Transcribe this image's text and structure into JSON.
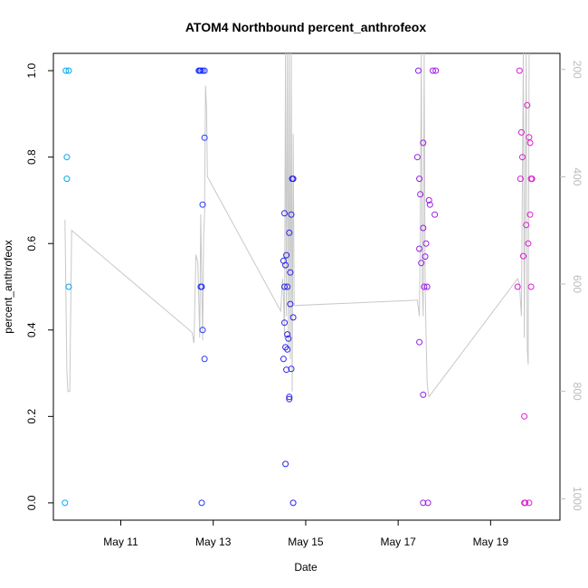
{
  "chart_data": {
    "type": "scatter",
    "title": "ATOM4 Northbound percent_anthrofeox",
    "xlabel": "Date",
    "ylabel": "percent_anthrofeox",
    "xlim": [
      "2023-05-09T13:00",
      "2023-05-20T12:00"
    ],
    "ylim": [
      -0.04,
      1.04
    ],
    "y2lim": [
      1040,
      170
    ],
    "x_ticks": [
      {
        "value": "2023-05-11T00:00",
        "label": "May 11"
      },
      {
        "value": "2023-05-13T00:00",
        "label": "May 13"
      },
      {
        "value": "2023-05-15T00:00",
        "label": "May 15"
      },
      {
        "value": "2023-05-17T00:00",
        "label": "May 17"
      },
      {
        "value": "2023-05-19T00:00",
        "label": "May 19"
      }
    ],
    "y_ticks": [
      "0.0",
      "0.2",
      "0.4",
      "0.6",
      "0.8",
      "1.0"
    ],
    "y2_ticks": [
      "200",
      "400",
      "600",
      "800",
      "1000"
    ],
    "grid": false,
    "legend": "none",
    "point_color_gradient": [
      "#00b4f0",
      "#1e3cff",
      "#2d1ee6",
      "#a01ee6",
      "#f01ec8"
    ],
    "line_color": "#c8c8c8",
    "series": [
      {
        "marker": "open-circle",
        "points": [
          [
            "2023-05-09T19:00",
            0.0
          ],
          [
            "2023-05-09T19:30",
            1.0
          ],
          [
            "2023-05-09T20:00",
            0.8
          ],
          [
            "2023-05-09T20:00",
            0.75
          ],
          [
            "2023-05-09T21:00",
            1.0
          ],
          [
            "2023-05-09T21:00",
            0.5
          ],
          [
            "2023-05-12T16:30",
            1.0
          ],
          [
            "2023-05-12T17:00",
            1.0
          ],
          [
            "2023-05-12T17:30",
            0.5
          ],
          [
            "2023-05-12T17:30",
            1.0
          ],
          [
            "2023-05-12T18:00",
            0.0
          ],
          [
            "2023-05-12T18:00",
            0.5
          ],
          [
            "2023-05-12T18:30",
            1.0
          ],
          [
            "2023-05-12T18:30",
            0.69
          ],
          [
            "2023-05-12T18:30",
            0.4
          ],
          [
            "2023-05-12T19:30",
            1.0
          ],
          [
            "2023-05-12T19:30",
            0.845
          ],
          [
            "2023-05-12T19:30",
            0.333
          ],
          [
            "2023-05-14T12:30",
            0.56
          ],
          [
            "2023-05-14T12:30",
            0.333
          ],
          [
            "2023-05-14T13:00",
            0.67
          ],
          [
            "2023-05-14T13:00",
            0.417
          ],
          [
            "2023-05-14T13:00",
            0.5
          ],
          [
            "2023-05-14T13:30",
            0.09
          ],
          [
            "2023-05-14T13:30",
            0.55
          ],
          [
            "2023-05-14T13:30",
            0.36
          ],
          [
            "2023-05-14T14:00",
            0.573
          ],
          [
            "2023-05-14T14:00",
            0.308
          ],
          [
            "2023-05-14T14:30",
            0.5
          ],
          [
            "2023-05-14T14:30",
            0.39
          ],
          [
            "2023-05-14T14:30",
            0.355
          ],
          [
            "2023-05-14T15:00",
            0.38
          ],
          [
            "2023-05-14T15:30",
            0.625
          ],
          [
            "2023-05-14T15:30",
            0.245
          ],
          [
            "2023-05-14T15:30",
            0.24
          ],
          [
            "2023-05-14T16:00",
            0.533
          ],
          [
            "2023-05-14T16:00",
            0.46
          ],
          [
            "2023-05-14T16:30",
            0.667
          ],
          [
            "2023-05-14T16:30",
            0.31
          ],
          [
            "2023-05-14T17:00",
            0.75
          ],
          [
            "2023-05-14T17:30",
            0.75
          ],
          [
            "2023-05-14T17:30",
            0.0
          ],
          [
            "2023-05-14T17:30",
            0.429
          ],
          [
            "2023-05-17T10:00",
            0.8
          ],
          [
            "2023-05-17T10:30",
            1.0
          ],
          [
            "2023-05-17T11:00",
            0.75
          ],
          [
            "2023-05-17T11:00",
            0.588
          ],
          [
            "2023-05-17T11:00",
            0.372
          ],
          [
            "2023-05-17T11:30",
            0.714
          ],
          [
            "2023-05-17T12:00",
            0.555
          ],
          [
            "2023-05-17T13:00",
            0.833
          ],
          [
            "2023-05-17T13:00",
            0.636
          ],
          [
            "2023-05-17T13:00",
            0.25
          ],
          [
            "2023-05-17T13:00",
            0.0
          ],
          [
            "2023-05-17T13:30",
            0.5
          ],
          [
            "2023-05-17T14:00",
            0.57
          ],
          [
            "2023-05-17T14:30",
            0.6
          ],
          [
            "2023-05-17T15:00",
            0.5
          ],
          [
            "2023-05-17T15:30",
            0.0
          ],
          [
            "2023-05-17T16:00",
            0.7
          ],
          [
            "2023-05-17T16:30",
            0.69
          ],
          [
            "2023-05-17T18:00",
            1.0
          ],
          [
            "2023-05-17T19:00",
            0.667
          ],
          [
            "2023-05-17T19:30",
            1.0
          ],
          [
            "2023-05-19T14:00",
            0.5
          ],
          [
            "2023-05-19T15:00",
            1.0
          ],
          [
            "2023-05-19T15:30",
            0.75
          ],
          [
            "2023-05-19T16:00",
            0.857
          ],
          [
            "2023-05-19T16:30",
            0.8
          ],
          [
            "2023-05-19T17:00",
            0.571
          ],
          [
            "2023-05-19T17:30",
            0.2
          ],
          [
            "2023-05-19T17:30",
            0.0
          ],
          [
            "2023-05-19T18:00",
            0.0
          ],
          [
            "2023-05-19T18:30",
            0.643
          ],
          [
            "2023-05-19T19:00",
            0.92
          ],
          [
            "2023-05-19T19:30",
            0.6
          ],
          [
            "2023-05-19T20:00",
            0.0
          ],
          [
            "2023-05-19T20:00",
            0.846
          ],
          [
            "2023-05-19T20:30",
            0.833
          ],
          [
            "2023-05-19T20:30",
            0.667
          ],
          [
            "2023-05-19T21:00",
            0.75
          ],
          [
            "2023-05-19T21:00",
            0.5
          ],
          [
            "2023-05-19T21:30",
            0.75
          ]
        ]
      },
      {
        "marker": "line",
        "axis": "right",
        "points": [
          [
            "2023-05-09T19:00",
            480
          ],
          [
            "2023-05-09T20:00",
            760
          ],
          [
            "2023-05-09T20:30",
            800
          ],
          [
            "2023-05-09T21:30",
            800
          ],
          [
            "2023-05-09T22:30",
            500
          ],
          [
            "2023-05-12T13:00",
            690
          ],
          [
            "2023-05-12T14:00",
            710
          ],
          [
            "2023-05-12T15:00",
            545
          ],
          [
            "2023-05-12T16:00",
            560
          ],
          [
            "2023-05-12T17:00",
            700
          ],
          [
            "2023-05-12T17:30",
            470
          ],
          [
            "2023-05-12T18:30",
            705
          ],
          [
            "2023-05-12T19:00",
            510
          ],
          [
            "2023-05-12T19:30",
            470
          ],
          [
            "2023-05-12T20:00",
            230
          ],
          [
            "2023-05-12T20:30",
            270
          ],
          [
            "2023-05-12T21:00",
            400
          ],
          [
            "2023-05-14T11:00",
            650
          ],
          [
            "2023-05-14T12:00",
            590
          ],
          [
            "2023-05-14T12:30",
            620
          ],
          [
            "2023-05-14T13:00",
            700
          ],
          [
            "2023-05-14T13:30",
            170
          ],
          [
            "2023-05-14T14:00",
            660
          ],
          [
            "2023-05-14T14:30",
            170
          ],
          [
            "2023-05-14T15:00",
            720
          ],
          [
            "2023-05-14T15:30",
            170
          ],
          [
            "2023-05-14T16:00",
            740
          ],
          [
            "2023-05-14T16:30",
            170
          ],
          [
            "2023-05-14T17:00",
            800
          ],
          [
            "2023-05-14T17:30",
            320
          ],
          [
            "2023-05-14T18:00",
            640
          ],
          [
            "2023-05-17T10:00",
            630
          ],
          [
            "2023-05-17T11:00",
            660
          ],
          [
            "2023-05-17T11:30",
            520
          ],
          [
            "2023-05-17T12:00",
            170
          ],
          [
            "2023-05-17T12:30",
            600
          ],
          [
            "2023-05-17T13:00",
            660
          ],
          [
            "2023-05-17T13:30",
            170
          ],
          [
            "2023-05-17T14:00",
            600
          ],
          [
            "2023-05-17T14:30",
            700
          ],
          [
            "2023-05-17T15:00",
            780
          ],
          [
            "2023-05-17T15:30",
            800
          ],
          [
            "2023-05-17T16:00",
            810
          ],
          [
            "2023-05-19T14:00",
            590
          ],
          [
            "2023-05-19T15:00",
            600
          ],
          [
            "2023-05-19T15:30",
            630
          ],
          [
            "2023-05-19T16:00",
            660
          ],
          [
            "2023-05-19T16:30",
            400
          ],
          [
            "2023-05-19T17:00",
            170
          ],
          [
            "2023-05-19T17:30",
            700
          ],
          [
            "2023-05-19T18:00",
            400
          ],
          [
            "2023-05-19T18:30",
            170
          ],
          [
            "2023-05-19T19:00",
            720
          ],
          [
            "2023-05-19T19:30",
            750
          ],
          [
            "2023-05-19T20:00",
            170
          ]
        ]
      }
    ]
  }
}
